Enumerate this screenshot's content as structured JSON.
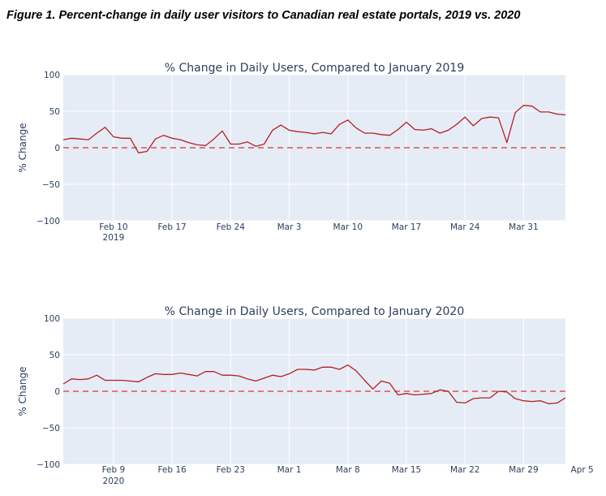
{
  "figure_title": "Figure 1. Percent-change in daily user visitors to Canadian real estate portals, 2019 vs. 2020",
  "colors": {
    "plot_bg": "#e5ecf6",
    "grid": "#ffffff",
    "line": "#b22222",
    "zero_line": "#e05050",
    "text": "#2a3f5f"
  },
  "chart_data": [
    {
      "type": "line",
      "title": "% Change in Daily Users, Compared to January 2019",
      "ylabel": "% Change",
      "xlabel": "",
      "ylim": [
        -100,
        100
      ],
      "ytick_labels": [
        "100",
        "50",
        "0",
        "−50",
        "−100"
      ],
      "xtick_labels": [
        "Feb 10",
        "Feb 17",
        "Feb 24",
        "Mar 3",
        "Mar 10",
        "Mar 17",
        "Mar 24",
        "Mar 31"
      ],
      "year_label": "2019",
      "x_start_date": "2019-02-04",
      "reference_line": 0,
      "grid": true,
      "series": [
        {
          "values": [
            11,
            13,
            12,
            11,
            20,
            28,
            15,
            13,
            13,
            -7,
            -5,
            12,
            17,
            13,
            11,
            7,
            4,
            3,
            12,
            23,
            5,
            5,
            8,
            2,
            5,
            24,
            31,
            24,
            22,
            21,
            19,
            21,
            19,
            32,
            38,
            27,
            20,
            20,
            18,
            17,
            25,
            35,
            25,
            24,
            26,
            20,
            24,
            32,
            42,
            30,
            40,
            42,
            41,
            7,
            48,
            58,
            57,
            49,
            49,
            46,
            45
          ]
        }
      ]
    },
    {
      "type": "line",
      "title": "% Change in Daily Users, Compared to January 2020",
      "ylabel": "% Change",
      "xlabel": "",
      "ylim": [
        -100,
        100
      ],
      "ytick_labels": [
        "100",
        "50",
        "0",
        "−50",
        "−100"
      ],
      "xtick_labels": [
        "Feb 9",
        "Feb 16",
        "Feb 23",
        "Mar 1",
        "Mar 8",
        "Mar 15",
        "Mar 22",
        "Mar 29",
        "Apr 5"
      ],
      "year_label": "2020",
      "x_start_date": "2020-02-03",
      "reference_line": 0,
      "grid": true,
      "series": [
        {
          "values": [
            10,
            17,
            16,
            17,
            22,
            15,
            15,
            15,
            14,
            13,
            19,
            24,
            23,
            23,
            25,
            23,
            21,
            27,
            27,
            22,
            22,
            21,
            17,
            14,
            18,
            22,
            20,
            24,
            30,
            30,
            29,
            33,
            33,
            30,
            36,
            28,
            15,
            3,
            14,
            11,
            -5,
            -3,
            -5,
            -4,
            -3,
            2,
            0,
            -15,
            -16,
            -10,
            -9,
            -9,
            0,
            -1,
            -10,
            -13,
            -14,
            -13,
            -17,
            -16,
            -9
          ]
        }
      ]
    }
  ]
}
